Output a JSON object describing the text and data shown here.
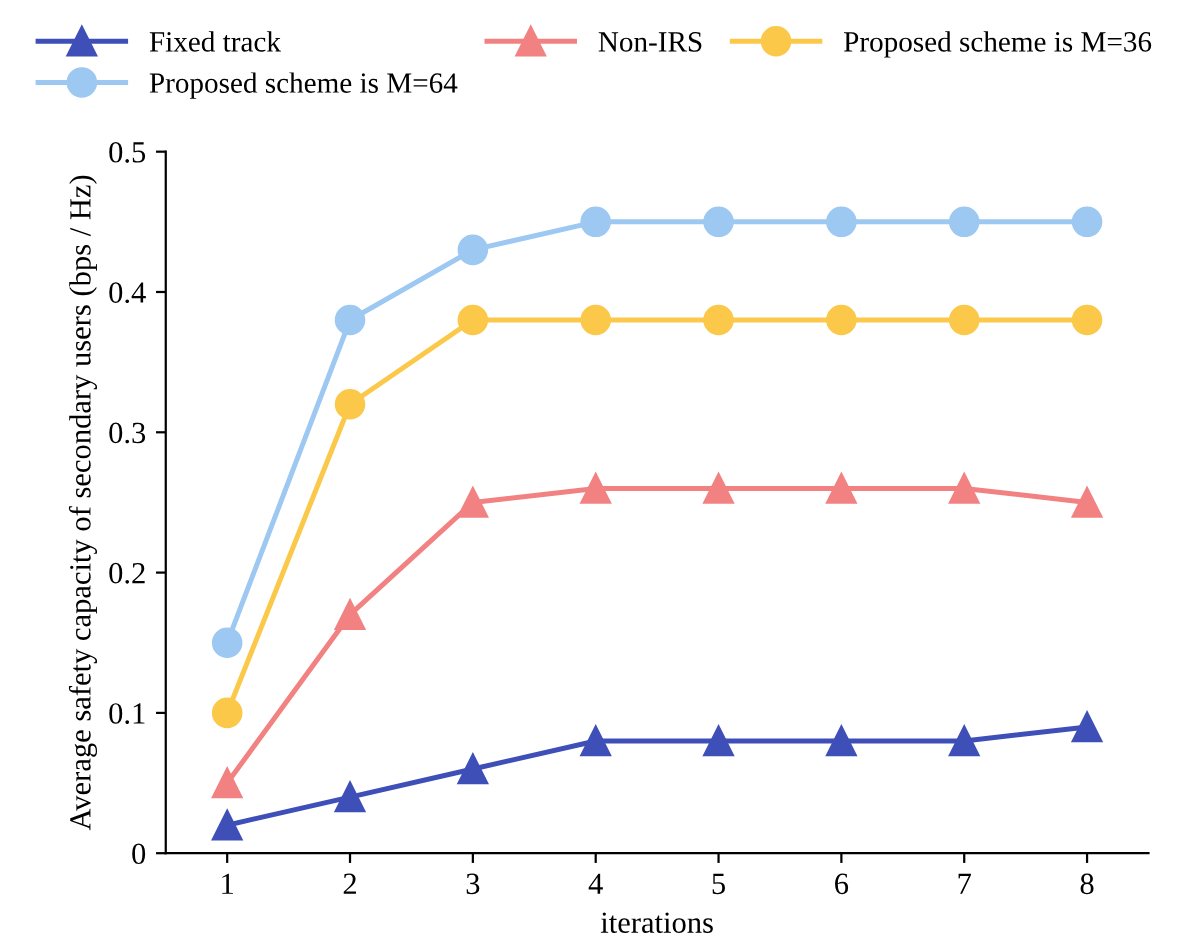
{
  "chart_data": {
    "type": "line",
    "xlabel": "iterations",
    "ylabel": "Average safety capacity of secondary users (bps / Hz)",
    "x": [
      1,
      2,
      3,
      4,
      5,
      6,
      7,
      8
    ],
    "series": [
      {
        "name": "Fixed track",
        "color": "#3f4fb8",
        "marker": "triangle",
        "values": [
          0.02,
          0.04,
          0.06,
          0.08,
          0.08,
          0.08,
          0.08,
          0.09
        ]
      },
      {
        "name": "Non-IRS",
        "color": "#f28282",
        "marker": "triangle",
        "values": [
          0.05,
          0.17,
          0.25,
          0.26,
          0.26,
          0.26,
          0.26,
          0.25
        ]
      },
      {
        "name": "Proposed scheme is M=36",
        "color": "#fbc84a",
        "marker": "circle",
        "values": [
          0.1,
          0.32,
          0.38,
          0.38,
          0.38,
          0.38,
          0.38,
          0.38
        ]
      },
      {
        "name": "Proposed scheme is M=64",
        "color": "#9dc8f2",
        "marker": "circle",
        "values": [
          0.15,
          0.38,
          0.43,
          0.45,
          0.45,
          0.45,
          0.45,
          0.45
        ]
      }
    ],
    "xlim": [
      0.5,
      8.5
    ],
    "xticks": [
      1,
      2,
      3,
      4,
      5,
      6,
      7,
      8
    ],
    "ylim": [
      0,
      0.5
    ],
    "yticks": [
      0,
      0.1,
      0.2,
      0.3,
      0.4,
      0.5
    ],
    "grid": false,
    "legend": "top",
    "line_style": "solid"
  }
}
